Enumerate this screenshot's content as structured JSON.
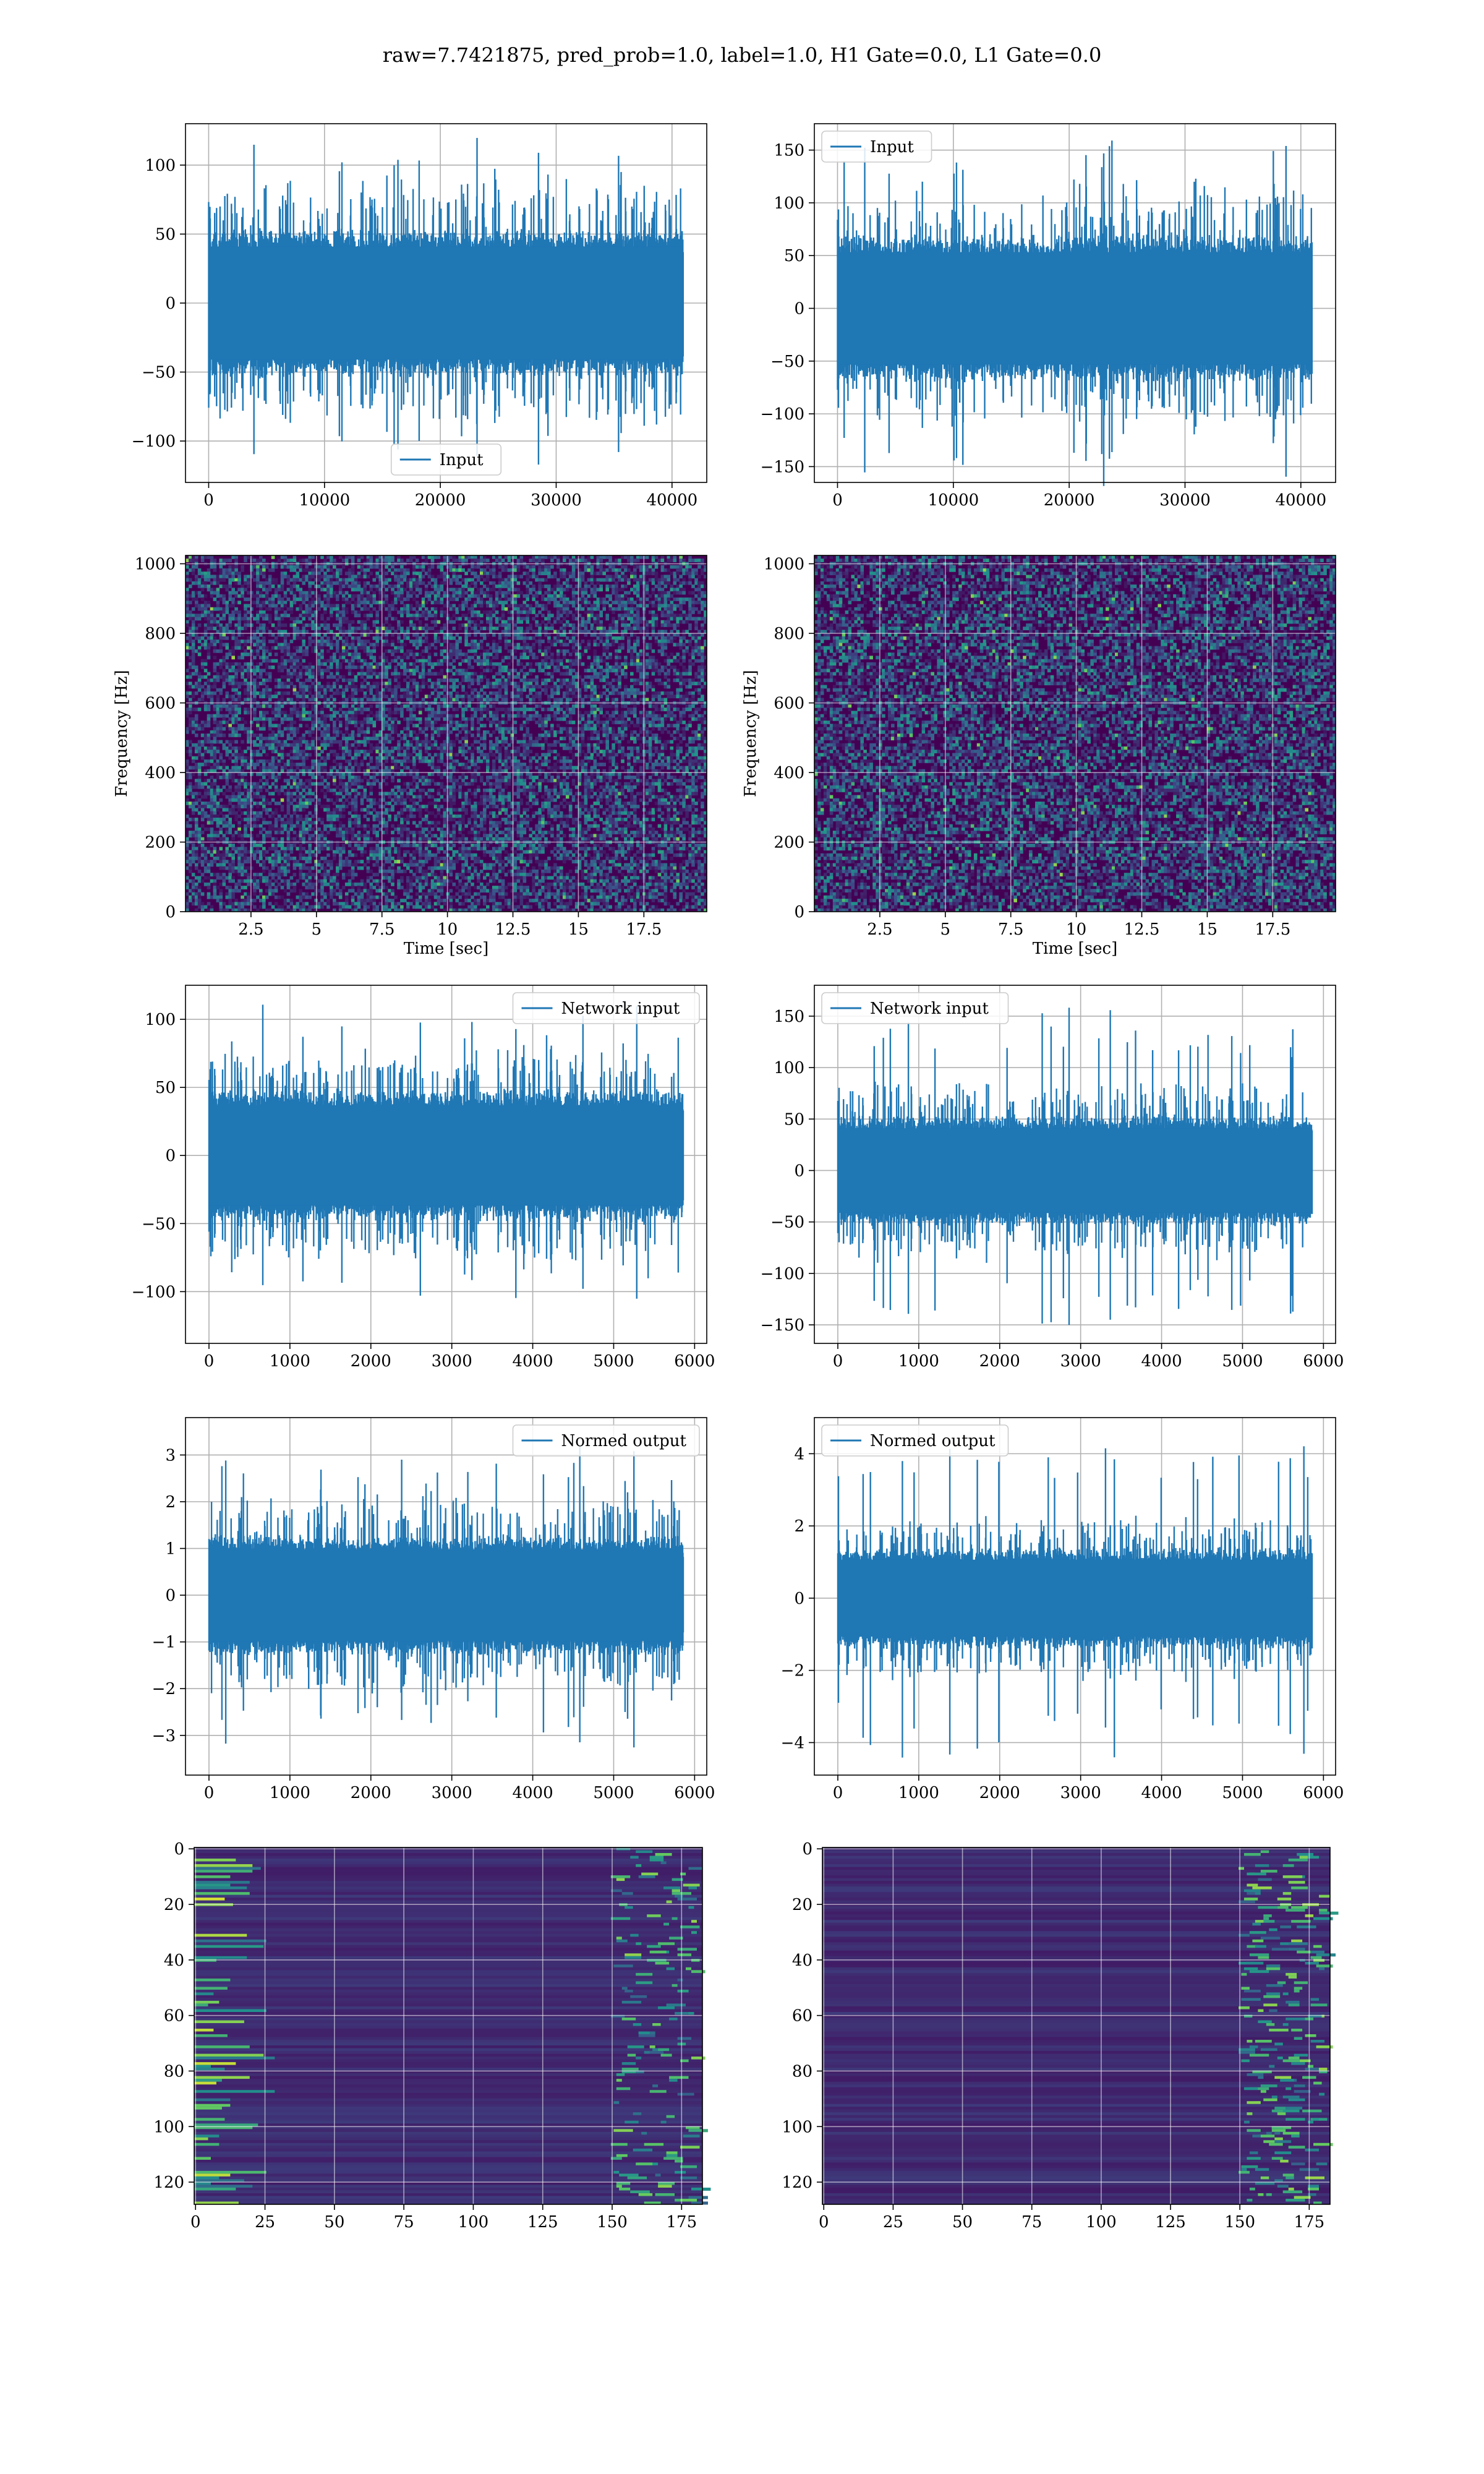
{
  "figure": {
    "suptitle": "raw=7.7421875, pred_prob=1.0, label=1.0, H1 Gate=0.0, L1 Gate=0.0"
  },
  "colors": {
    "line": "#1f77b4",
    "grid": "#b0b0b0",
    "viridis_low": "#440154",
    "viridis_mid": "#21918c",
    "viridis_high": "#fde725"
  },
  "chart_data": [
    {
      "id": "h1-input",
      "type": "line",
      "title": "",
      "xlabel": "",
      "ylabel": "",
      "xlim": [
        -2000,
        43000
      ],
      "ylim": [
        -130,
        130
      ],
      "xticks": [
        0,
        10000,
        20000,
        30000,
        40000
      ],
      "yticks": [
        -100,
        -50,
        0,
        50,
        100
      ],
      "grid": true,
      "legend": "lower center",
      "series": [
        {
          "name": "Input",
          "x_range": [
            0,
            40960
          ],
          "core_amplitude": 50,
          "peak_amplitude": 122
        }
      ]
    },
    {
      "id": "l1-input",
      "type": "line",
      "title": "",
      "xlabel": "",
      "ylabel": "",
      "xlim": [
        -2000,
        43000
      ],
      "ylim": [
        -165,
        175
      ],
      "xticks": [
        0,
        10000,
        20000,
        30000,
        40000
      ],
      "yticks": [
        -150,
        -100,
        -50,
        0,
        50,
        100,
        150
      ],
      "grid": true,
      "legend": "upper left",
      "series": [
        {
          "name": "Input",
          "x_range": [
            0,
            40960
          ],
          "core_amplitude": 65,
          "peak_amplitude": 170
        }
      ]
    },
    {
      "id": "h1-spectrogram",
      "type": "heatmap",
      "title": "",
      "xlabel": "Time [sec]",
      "ylabel": "Frequency [Hz]",
      "xlim": [
        0,
        19.9
      ],
      "ylim": [
        0,
        1024
      ],
      "xticks": [
        2.5,
        5.0,
        7.5,
        10.0,
        12.5,
        15.0,
        17.5
      ],
      "yticks": [
        0,
        200,
        400,
        600,
        800,
        1000
      ],
      "grid": true,
      "colormap": "viridis"
    },
    {
      "id": "l1-spectrogram",
      "type": "heatmap",
      "title": "",
      "xlabel": "Time [sec]",
      "ylabel": "Frequency [Hz]",
      "xlim": [
        0,
        19.9
      ],
      "ylim": [
        0,
        1024
      ],
      "xticks": [
        2.5,
        5.0,
        7.5,
        10.0,
        12.5,
        15.0,
        17.5
      ],
      "yticks": [
        0,
        200,
        400,
        600,
        800,
        1000
      ],
      "grid": true,
      "colormap": "viridis"
    },
    {
      "id": "h1-network-input",
      "type": "line",
      "title": "",
      "xlabel": "",
      "ylabel": "",
      "xlim": [
        -290,
        6150
      ],
      "ylim": [
        -138,
        125
      ],
      "xticks": [
        0,
        1000,
        2000,
        3000,
        4000,
        5000,
        6000
      ],
      "yticks": [
        -100,
        -50,
        0,
        50,
        100
      ],
      "grid": true,
      "legend": "upper right",
      "series": [
        {
          "name": "Network input",
          "x_range": [
            0,
            5860
          ],
          "core_amplitude": 45,
          "peak_amplitude": 118
        }
      ]
    },
    {
      "id": "l1-network-input",
      "type": "line",
      "title": "",
      "xlabel": "",
      "ylabel": "",
      "xlim": [
        -290,
        6150
      ],
      "ylim": [
        -168,
        180
      ],
      "xticks": [
        0,
        1000,
        2000,
        3000,
        4000,
        5000,
        6000
      ],
      "yticks": [
        -150,
        -100,
        -50,
        0,
        50,
        100,
        150
      ],
      "grid": true,
      "legend": "upper left",
      "series": [
        {
          "name": "Network input",
          "x_range": [
            0,
            5860
          ],
          "core_amplitude": 50,
          "peak_amplitude": 168
        }
      ]
    },
    {
      "id": "h1-normed-output",
      "type": "line",
      "title": "",
      "xlabel": "",
      "ylabel": "",
      "xlim": [
        -290,
        6150
      ],
      "ylim": [
        -3.85,
        3.8
      ],
      "xticks": [
        0,
        1000,
        2000,
        3000,
        4000,
        5000,
        6000
      ],
      "yticks": [
        -3,
        -2,
        -1,
        0,
        1,
        2,
        3
      ],
      "grid": true,
      "legend": "upper right",
      "series": [
        {
          "name": "Normed output",
          "x_range": [
            0,
            5860
          ],
          "core_amplitude": 1.2,
          "peak_amplitude": 3.45
        }
      ]
    },
    {
      "id": "l1-normed-output",
      "type": "line",
      "title": "",
      "xlabel": "",
      "ylabel": "",
      "xlim": [
        -290,
        6150
      ],
      "ylim": [
        -4.9,
        5.0
      ],
      "xticks": [
        0,
        1000,
        2000,
        3000,
        4000,
        5000,
        6000
      ],
      "yticks": [
        -4,
        -2,
        0,
        2,
        4
      ],
      "grid": true,
      "legend": "upper left",
      "series": [
        {
          "name": "Normed output",
          "x_range": [
            0,
            5860
          ],
          "core_amplitude": 1.3,
          "peak_amplitude": 4.7
        }
      ]
    },
    {
      "id": "h1-feature-map",
      "type": "heatmap",
      "title": "",
      "xlabel": "",
      "ylabel": "",
      "xlim": [
        -0.5,
        182.5
      ],
      "ylim": [
        128,
        -0.5
      ],
      "xticks": [
        0,
        25,
        50,
        75,
        100,
        125,
        150,
        175
      ],
      "yticks": [
        0,
        20,
        40,
        60,
        80,
        100,
        120
      ],
      "grid": true,
      "colormap": "viridis"
    },
    {
      "id": "l1-feature-map",
      "type": "heatmap",
      "title": "",
      "xlabel": "",
      "ylabel": "",
      "xlim": [
        -0.5,
        182.5
      ],
      "ylim": [
        128,
        -0.5
      ],
      "xticks": [
        0,
        25,
        50,
        75,
        100,
        125,
        150,
        175
      ],
      "yticks": [
        0,
        20,
        40,
        60,
        80,
        100,
        120
      ],
      "grid": true,
      "colormap": "viridis"
    }
  ]
}
